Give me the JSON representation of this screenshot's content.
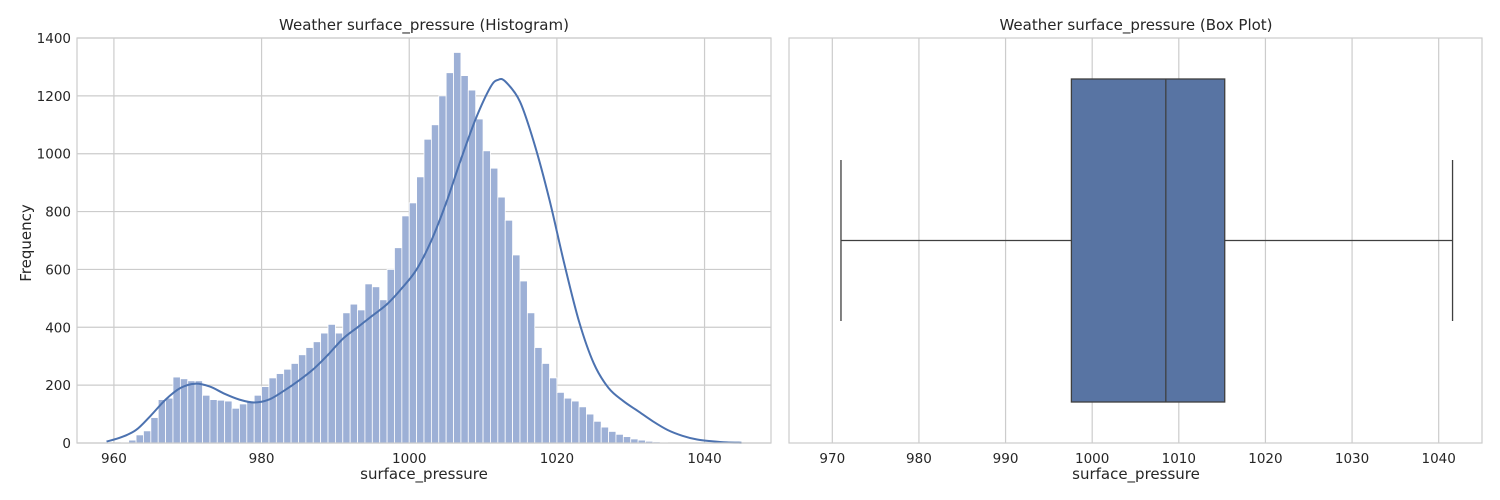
{
  "colors": {
    "hist_fill": "#9db0d6",
    "hist_edge": "#ffffff",
    "kde_line": "#4c72b0",
    "box_fill": "#5874a3",
    "box_edge": "#3f3f3f",
    "grid": "#cccccc",
    "axes_edge": "#cccccc"
  },
  "chart_data": [
    {
      "type": "bar",
      "subtype": "histogram-with-kde",
      "title": "Weather surface_pressure (Histogram)",
      "xlabel": "surface_pressure",
      "ylabel": "Frequency",
      "xlim": [
        955,
        1049
      ],
      "ylim": [
        0,
        1400
      ],
      "xticks": [
        960,
        980,
        1000,
        1020,
        1040
      ],
      "yticks": [
        0,
        200,
        400,
        600,
        800,
        1000,
        1200,
        1400
      ],
      "grid": true,
      "bin_start": 961.0,
      "bin_width": 1.0,
      "values": [
        3,
        10,
        28,
        42,
        88,
        150,
        155,
        228,
        222,
        215,
        215,
        165,
        150,
        148,
        145,
        120,
        135,
        145,
        165,
        195,
        225,
        240,
        255,
        275,
        305,
        330,
        350,
        380,
        410,
        380,
        450,
        480,
        460,
        550,
        540,
        495,
        600,
        675,
        785,
        830,
        920,
        1050,
        1100,
        1200,
        1280,
        1350,
        1270,
        1220,
        1120,
        1010,
        950,
        850,
        770,
        650,
        560,
        450,
        330,
        275,
        225,
        175,
        155,
        145,
        125,
        100,
        75,
        55,
        40,
        30,
        22,
        14,
        10,
        6,
        4,
        2
      ],
      "kde": {
        "x": [
          959,
          961,
          963,
          965,
          967,
          969,
          971,
          973,
          975,
          977,
          979,
          981,
          983,
          985,
          987,
          989,
          991,
          993,
          995,
          997,
          999,
          1001,
          1003,
          1005,
          1007,
          1009,
          1011,
          1012,
          1013,
          1015,
          1017,
          1019,
          1021,
          1023,
          1025,
          1027,
          1029,
          1031,
          1033,
          1035,
          1037,
          1039,
          1041,
          1043,
          1045
        ],
        "y": [
          5,
          20,
          45,
          95,
          150,
          190,
          205,
          195,
          170,
          150,
          140,
          150,
          180,
          215,
          255,
          305,
          360,
          400,
          440,
          480,
          535,
          600,
          700,
          830,
          980,
          1120,
          1230,
          1255,
          1250,
          1180,
          1030,
          840,
          620,
          420,
          275,
          190,
          145,
          110,
          75,
          45,
          25,
          12,
          6,
          2,
          1
        ]
      }
    },
    {
      "type": "box",
      "title": "Weather surface_pressure (Box Plot)",
      "xlabel": "surface_pressure",
      "xlim": [
        965,
        1045
      ],
      "xticks": [
        970,
        980,
        990,
        1000,
        1010,
        1020,
        1030,
        1040
      ],
      "grid": true,
      "whisker_low": 971.0,
      "q1": 997.6,
      "median": 1008.5,
      "q3": 1015.3,
      "whisker_high": 1041.6
    }
  ]
}
